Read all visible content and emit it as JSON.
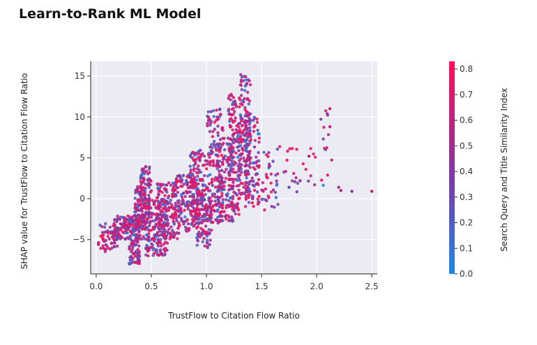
{
  "title": "Learn-to-Rank ML Model",
  "chart_data": {
    "type": "scatter",
    "title": "",
    "xlabel": "TrustFlow to Citation Flow Ratio",
    "ylabel": "SHAP value for TrustFlow to Citation Flow Ratio",
    "xlim": [
      -0.05,
      2.55
    ],
    "ylim": [
      -9.2,
      16.8
    ],
    "x_ticks": [
      0.0,
      0.5,
      1.0,
      1.5,
      2.0,
      2.5
    ],
    "x_tick_labels": [
      "0.0",
      "0.5",
      "1.0",
      "1.5",
      "2.0",
      "2.5"
    ],
    "y_ticks": [
      -5,
      0,
      5,
      10,
      15
    ],
    "y_tick_labels": [
      "−5",
      "0",
      "5",
      "10",
      "15"
    ],
    "grid": true,
    "plot_background": "#ebebf3",
    "colorbar": {
      "label": "Search Query and Title Similarity Index",
      "range": [
        0.0,
        0.83
      ],
      "ticks": [
        0.0,
        0.1,
        0.2,
        0.3,
        0.4,
        0.5,
        0.6,
        0.7,
        0.8
      ],
      "tick_labels": [
        "0.0",
        "0.1",
        "0.2",
        "0.3",
        "0.4",
        "0.5",
        "0.6",
        "0.7",
        "0.8"
      ],
      "colors": [
        "#1e88e5",
        "#7c3aa6",
        "#ff0d57"
      ]
    },
    "clusters": [
      {
        "x": [
          0.02,
          0.2
        ],
        "y": [
          -6.5,
          -3
        ],
        "n": 60
      },
      {
        "x": [
          0.15,
          0.3
        ],
        "y": [
          -5,
          -2
        ],
        "n": 90
      },
      {
        "x": [
          0.3,
          0.4
        ],
        "y": [
          -8,
          -2
        ],
        "n": 120
      },
      {
        "x": [
          0.35,
          0.45
        ],
        "y": [
          -5,
          1.5
        ],
        "n": 110
      },
      {
        "x": [
          0.4,
          0.5
        ],
        "y": [
          -3,
          4
        ],
        "n": 100
      },
      {
        "x": [
          0.45,
          0.65
        ],
        "y": [
          -7,
          0
        ],
        "n": 180
      },
      {
        "x": [
          0.55,
          0.75
        ],
        "y": [
          -5,
          2
        ],
        "n": 140
      },
      {
        "x": [
          0.7,
          0.9
        ],
        "y": [
          -4,
          3
        ],
        "n": 140
      },
      {
        "x": [
          0.85,
          1.0
        ],
        "y": [
          -3,
          6
        ],
        "n": 140
      },
      {
        "x": [
          0.9,
          1.05
        ],
        "y": [
          -6,
          1
        ],
        "n": 90
      },
      {
        "x": [
          1.0,
          1.15
        ],
        "y": [
          -3,
          11
        ],
        "n": 160
      },
      {
        "x": [
          1.1,
          1.25
        ],
        "y": [
          -3,
          8
        ],
        "n": 130
      },
      {
        "x": [
          1.2,
          1.3
        ],
        "y": [
          -2,
          13
        ],
        "n": 140
      },
      {
        "x": [
          1.3,
          1.4
        ],
        "y": [
          0,
          15.5
        ],
        "n": 150
      },
      {
        "x": [
          1.35,
          1.48
        ],
        "y": [
          -1,
          10
        ],
        "n": 110
      },
      {
        "x": [
          1.45,
          1.65
        ],
        "y": [
          -1.5,
          6
        ],
        "n": 40
      },
      {
        "x": [
          1.6,
          2.0
        ],
        "y": [
          0.5,
          6.5
        ],
        "n": 25
      },
      {
        "x": [
          2.0,
          2.15
        ],
        "y": [
          0.5,
          11
        ],
        "n": 14
      }
    ],
    "points": [
      {
        "x": 2.2,
        "y": 1.4,
        "c": 0.55
      },
      {
        "x": 2.22,
        "y": 1.0,
        "c": 0.6
      },
      {
        "x": 2.32,
        "y": 0.9,
        "c": 0.45
      },
      {
        "x": 2.5,
        "y": 0.9,
        "c": 0.65
      },
      {
        "x": 2.12,
        "y": 11.0,
        "c": 0.65
      },
      {
        "x": 2.12,
        "y": 8.8,
        "c": 0.62
      },
      {
        "x": 1.75,
        "y": 1.4,
        "c": 0.3
      },
      {
        "x": 1.93,
        "y": 5.2,
        "c": 0.6
      },
      {
        "x": 1.85,
        "y": 2.2,
        "c": 0.5
      }
    ]
  }
}
